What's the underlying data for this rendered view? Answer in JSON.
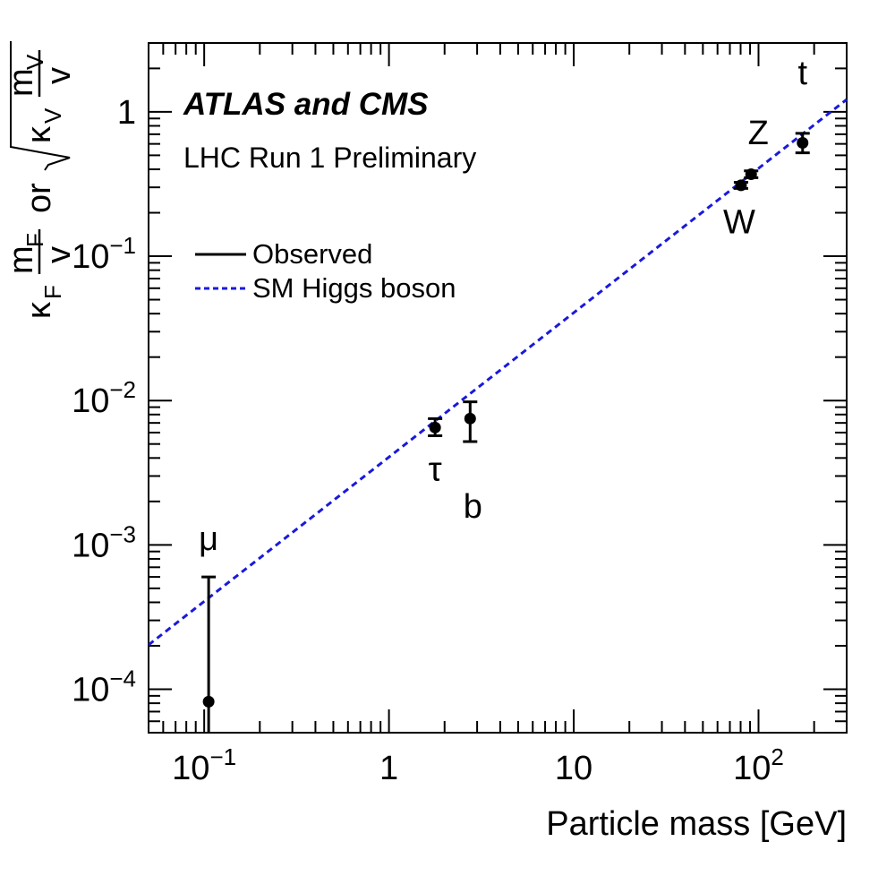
{
  "chart_data": {
    "type": "scatter",
    "title": "ATLAS and CMS",
    "subtitle": "LHC Run 1 Preliminary",
    "xlabel": "Particle mass [GeV]",
    "ylabel": {
      "fermion_kappa": "κ",
      "fermion_kappa_sub": "F",
      "fermion_num": "m",
      "fermion_num_sub": "F",
      "fermion_den": "v",
      "connector": "or",
      "boson_kappa": "κ",
      "boson_kappa_sub": "V",
      "boson_num": "m",
      "boson_num_sub": "V",
      "boson_den": "v"
    },
    "x_scale": "log",
    "y_scale": "log",
    "xlim": [
      0.05,
      300
    ],
    "ylim": [
      5e-05,
      3
    ],
    "x_ticks": [
      {
        "value": 0.1,
        "base": "10",
        "exp": "−1"
      },
      {
        "value": 1,
        "base": "1",
        "exp": ""
      },
      {
        "value": 10,
        "base": "10",
        "exp": ""
      },
      {
        "value": 100,
        "base": "10",
        "exp": "2"
      }
    ],
    "y_ticks": [
      {
        "value": 0.0001,
        "base": "10",
        "exp": "−4"
      },
      {
        "value": 0.001,
        "base": "10",
        "exp": "−3"
      },
      {
        "value": 0.01,
        "base": "10",
        "exp": "−2"
      },
      {
        "value": 0.1,
        "base": "10",
        "exp": "−1"
      },
      {
        "value": 1,
        "base": "1",
        "exp": ""
      }
    ],
    "legend": {
      "placement": "upper-left",
      "entries": [
        {
          "label": "Observed",
          "style": "solid",
          "color": "#000000"
        },
        {
          "label": "SM Higgs boson",
          "style": "dashed",
          "color": "#1a1adb"
        }
      ]
    },
    "series": [
      {
        "name": "Observed",
        "points": [
          {
            "particle": "μ",
            "x": 0.1057,
            "y": 8.2e-05,
            "y_low": 2e-05,
            "y_high": 0.0006
          },
          {
            "particle": "τ",
            "x": 1.777,
            "y": 0.0065,
            "y_low": 0.0057,
            "y_high": 0.0075
          },
          {
            "particle": "b",
            "x": 2.75,
            "y": 0.0075,
            "y_low": 0.0052,
            "y_high": 0.0098
          },
          {
            "particle": "W",
            "x": 80.4,
            "y": 0.31,
            "y_low": 0.295,
            "y_high": 0.325
          },
          {
            "particle": "Z",
            "x": 91.2,
            "y": 0.37,
            "y_low": 0.35,
            "y_high": 0.39
          },
          {
            "particle": "t",
            "x": 173.2,
            "y": 0.61,
            "y_low": 0.52,
            "y_high": 0.71
          }
        ]
      }
    ],
    "reference_line": {
      "name": "SM Higgs boson",
      "slope_per_gev": 0.00406
    }
  },
  "colors": {
    "observed": "#000000",
    "sm_line": "#1a1adb",
    "frame": "#000000"
  }
}
